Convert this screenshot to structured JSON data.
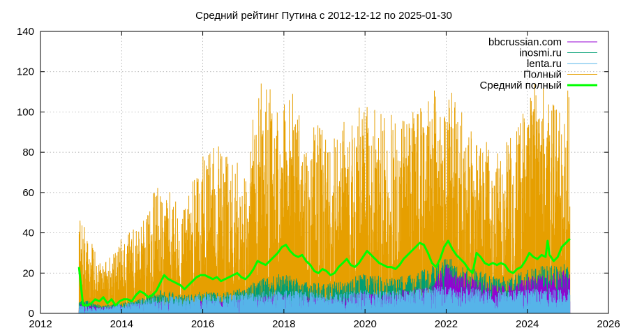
{
  "chart_data": {
    "type": "line",
    "title": "Средний рейтинг Путина с 2012-12-12  по 2025-01-30",
    "xlabel": "",
    "ylabel": "",
    "xlim": [
      2012,
      2026
    ],
    "ylim": [
      0,
      140
    ],
    "x_ticks": [
      "2012",
      "2014",
      "2016",
      "2018",
      "2020",
      "2022",
      "2024",
      "2026"
    ],
    "y_ticks": [
      "0",
      "20",
      "40",
      "60",
      "80",
      "100",
      "120",
      "140"
    ],
    "grid": true,
    "legend_position": "top-right",
    "series": [
      {
        "name": "bbcrussian.com",
        "color": "#9400d3",
        "style": "spikes",
        "x": [
          2012.95,
          2013.5,
          2014.0,
          2014.5,
          2015.0,
          2015.5,
          2016.0,
          2016.5,
          2017.0,
          2017.5,
          2018.0,
          2018.5,
          2019.0,
          2019.5,
          2020.0,
          2020.5,
          2021.0,
          2021.5,
          2022.0,
          2022.5,
          2023.0,
          2023.5,
          2024.0,
          2024.5,
          2025.05
        ],
        "values": [
          5,
          3,
          4,
          5,
          6,
          5,
          7,
          6,
          8,
          9,
          10,
          9,
          8,
          9,
          11,
          10,
          12,
          13,
          25,
          20,
          15,
          14,
          18,
          20,
          22
        ]
      },
      {
        "name": "inosmi.ru",
        "color": "#009e73",
        "style": "spikes",
        "x": [
          2012.95,
          2013.5,
          2014.0,
          2014.5,
          2015.0,
          2015.5,
          2016.0,
          2016.5,
          2017.0,
          2017.5,
          2018.0,
          2018.5,
          2019.0,
          2019.5,
          2020.0,
          2020.5,
          2021.0,
          2021.5,
          2022.0,
          2022.5,
          2023.0,
          2023.5,
          2024.0,
          2024.5,
          2025.05
        ],
        "values": [
          8,
          4,
          5,
          8,
          12,
          9,
          11,
          10,
          13,
          18,
          20,
          16,
          15,
          17,
          20,
          18,
          19,
          22,
          28,
          24,
          20,
          18,
          22,
          24,
          25
        ]
      },
      {
        "name": "lenta.ru",
        "color": "#56b4e9",
        "style": "spikes",
        "x": [
          2012.95,
          2013.5,
          2014.0,
          2014.5,
          2015.0,
          2015.5,
          2016.0,
          2016.5,
          2017.0,
          2017.5,
          2018.0,
          2018.5,
          2019.0,
          2019.5,
          2020.0,
          2020.5,
          2021.0,
          2021.5,
          2022.0,
          2022.5,
          2023.0,
          2023.5,
          2024.0,
          2024.5,
          2025.05
        ],
        "values": [
          4,
          3,
          5,
          7,
          9,
          8,
          10,
          9,
          10,
          11,
          12,
          11,
          10,
          11,
          12,
          11,
          12,
          13,
          14,
          13,
          12,
          11,
          12,
          13,
          12
        ]
      },
      {
        "name": "Полный",
        "color": "#e69f00",
        "style": "spikes",
        "x": [
          2012.95,
          2013.5,
          2014.0,
          2014.5,
          2014.95,
          2015.5,
          2016.0,
          2016.3,
          2017.0,
          2017.45,
          2018.0,
          2018.2,
          2018.5,
          2019.0,
          2019.5,
          2020.0,
          2020.5,
          2021.0,
          2021.4,
          2022.0,
          2022.5,
          2022.8,
          2023.0,
          2023.5,
          2024.0,
          2024.25,
          2024.5,
          2025.05
        ],
        "values": [
          49,
          24,
          37,
          45,
          68,
          50,
          80,
          88,
          75,
          115,
          105,
          110,
          90,
          95,
          95,
          105,
          100,
          95,
          106,
          115,
          95,
          87,
          85,
          85,
          103,
          121,
          108,
          113
        ]
      },
      {
        "name": "Средний полный",
        "color": "#00ff00",
        "style": "line",
        "x": [
          2012.95,
          2013.05,
          2013.15,
          2013.25,
          2013.35,
          2013.45,
          2013.55,
          2013.65,
          2013.75,
          2013.85,
          2013.95,
          2014.05,
          2014.15,
          2014.25,
          2014.35,
          2014.45,
          2014.55,
          2014.65,
          2014.75,
          2014.85,
          2014.95,
          2015.05,
          2015.15,
          2015.25,
          2015.35,
          2015.45,
          2015.55,
          2015.65,
          2015.75,
          2015.85,
          2015.95,
          2016.05,
          2016.15,
          2016.25,
          2016.35,
          2016.45,
          2016.55,
          2016.65,
          2016.75,
          2016.85,
          2016.95,
          2017.05,
          2017.15,
          2017.25,
          2017.35,
          2017.45,
          2017.55,
          2017.65,
          2017.75,
          2017.85,
          2017.95,
          2018.05,
          2018.15,
          2018.25,
          2018.35,
          2018.45,
          2018.55,
          2018.65,
          2018.75,
          2018.85,
          2018.95,
          2019.05,
          2019.15,
          2019.25,
          2019.35,
          2019.45,
          2019.55,
          2019.65,
          2019.75,
          2019.85,
          2019.95,
          2020.05,
          2020.15,
          2020.25,
          2020.35,
          2020.45,
          2020.55,
          2020.65,
          2020.75,
          2020.85,
          2020.95,
          2021.05,
          2021.15,
          2021.25,
          2021.35,
          2021.45,
          2021.55,
          2021.65,
          2021.75,
          2021.85,
          2021.95,
          2022.05,
          2022.15,
          2022.25,
          2022.35,
          2022.45,
          2022.55,
          2022.65,
          2022.75,
          2022.85,
          2022.95,
          2023.05,
          2023.15,
          2023.25,
          2023.35,
          2023.45,
          2023.55,
          2023.65,
          2023.75,
          2023.85,
          2023.95,
          2024.05,
          2024.15,
          2024.25,
          2024.35,
          2024.45,
          2024.5,
          2024.55,
          2024.65,
          2024.75,
          2024.85,
          2024.95,
          2025.05
        ],
        "values": [
          23,
          4,
          4,
          5,
          7,
          6,
          8,
          5,
          7,
          4,
          6,
          7,
          7,
          6,
          9,
          11,
          10,
          8,
          9,
          11,
          15,
          19,
          17,
          16,
          15,
          14,
          12,
          14,
          16,
          18,
          19,
          19,
          18,
          17,
          18,
          16,
          17,
          18,
          19,
          20,
          18,
          17,
          19,
          22,
          26,
          25,
          24,
          26,
          28,
          30,
          33,
          34,
          31,
          29,
          28,
          29,
          26,
          24,
          21,
          20,
          22,
          21,
          19,
          20,
          23,
          25,
          27,
          24,
          23,
          25,
          28,
          31,
          29,
          27,
          25,
          24,
          23,
          23,
          22,
          24,
          27,
          29,
          31,
          33,
          35,
          34,
          30,
          25,
          23,
          27,
          33,
          36,
          32,
          29,
          27,
          25,
          22,
          20,
          30,
          28,
          25,
          24,
          25,
          24,
          25,
          24,
          21,
          20,
          22,
          23,
          26,
          30,
          28,
          27,
          29,
          28,
          36,
          29,
          26,
          28,
          33,
          35,
          37
        ]
      }
    ]
  }
}
